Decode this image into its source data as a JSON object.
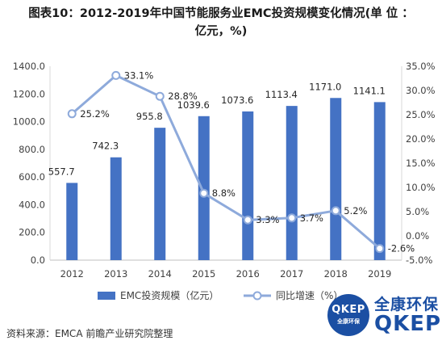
{
  "title_line1": "图表10：2012-2019年中国节能服务业EMC投资规模变化情况(单 位 ：",
  "title_line2": "亿元，%)",
  "source": "资料来源：EMCA 前瞻产业研究院整理",
  "logo": {
    "circle_main": "QKEP",
    "circle_sub": "全康环保",
    "cn": "全康环保",
    "en": "QKEP"
  },
  "colors": {
    "bar": "#4472c4",
    "line": "#8eaadb",
    "marker_fill": "#ffffff"
  },
  "chart_data": {
    "type": "bar",
    "categories": [
      "2012",
      "2013",
      "2014",
      "2015",
      "2016",
      "2017",
      "2018",
      "2019"
    ],
    "series": [
      {
        "name": "EMC投资规模（亿元）",
        "type": "bar",
        "axis": "left",
        "values": [
          557.7,
          742.3,
          955.8,
          1039.6,
          1073.6,
          1113.4,
          1171.0,
          1141.1
        ],
        "labels": [
          "557.7",
          "742.3",
          "955.8",
          "1039.6",
          "1073.6",
          "1113.4",
          "1171.0",
          "1141.1"
        ]
      },
      {
        "name": "同比增速（%）",
        "type": "line",
        "axis": "right",
        "values": [
          25.2,
          33.1,
          28.8,
          8.8,
          3.3,
          3.7,
          5.2,
          -2.6
        ],
        "labels": [
          "25.2%",
          "33.1%",
          "28.8%",
          "8.8%",
          "3.3%",
          "3.7%",
          "5.2%",
          "-2.6%"
        ]
      }
    ],
    "y_left": {
      "lim": [
        0,
        1400
      ],
      "ticks": [
        "0.0",
        "200.0",
        "400.0",
        "600.0",
        "800.0",
        "1000.0",
        "1200.0",
        "1400.0"
      ]
    },
    "y_right": {
      "lim": [
        -5,
        35
      ],
      "ticks": [
        "-5.0%",
        "0.0%",
        "5.0%",
        "10.0%",
        "15.0%",
        "20.0%",
        "25.0%",
        "30.0%",
        "35.0%"
      ]
    },
    "grid": false,
    "legend": "bottom"
  }
}
